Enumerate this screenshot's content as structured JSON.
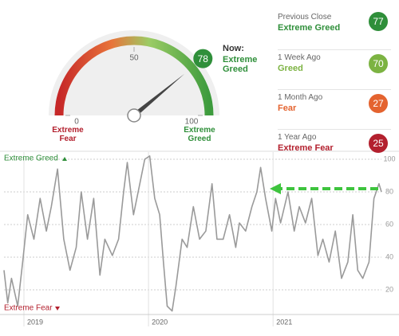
{
  "gauge": {
    "value": 78,
    "lim": [
      0,
      100
    ],
    "ticks": [
      0,
      50,
      100
    ],
    "fear_label": "Extreme Fear",
    "greed_label": "Extreme Greed",
    "now_label": "Now:",
    "now_rating": "Extreme Greed",
    "color": "#2f8f3a"
  },
  "history": [
    {
      "period": "Previous Close",
      "rating": "Extreme Greed",
      "value": 77,
      "color": "#2f8f3a"
    },
    {
      "period": "1 Week Ago",
      "rating": "Greed",
      "value": 70,
      "color": "#7cb342"
    },
    {
      "period": "1 Month Ago",
      "rating": "Fear",
      "value": 27,
      "color": "#e4632f"
    },
    {
      "period": "1 Year Ago",
      "rating": "Extreme Fear",
      "value": 25,
      "color": "#b3202e"
    }
  ],
  "chart_data": {
    "type": "line",
    "top_label": "Extreme Greed",
    "bottom_label": "Extreme Fear",
    "x": [
      2018.84,
      2018.87,
      2018.9,
      2018.95,
      2018.99,
      2019.03,
      2019.08,
      2019.13,
      2019.18,
      2019.22,
      2019.27,
      2019.32,
      2019.37,
      2019.42,
      2019.46,
      2019.51,
      2019.56,
      2019.61,
      2019.65,
      2019.71,
      2019.76,
      2019.8,
      2019.83,
      2019.88,
      2019.93,
      2019.97,
      2020.01,
      2020.05,
      2020.09,
      2020.12,
      2020.15,
      2020.19,
      2020.22,
      2020.27,
      2020.31,
      2020.36,
      2020.41,
      2020.46,
      2020.51,
      2020.55,
      2020.6,
      2020.65,
      2020.7,
      2020.73,
      2020.78,
      2020.83,
      2020.87,
      2020.9,
      2020.94,
      2020.99,
      2021.02,
      2021.06,
      2021.12,
      2021.17,
      2021.21,
      2021.26,
      2021.31,
      2021.36,
      2021.4,
      2021.45,
      2021.5,
      2021.55,
      2021.6,
      2021.64,
      2021.68,
      2021.72,
      2021.77,
      2021.81,
      2021.85,
      2021.87
    ],
    "values": [
      32,
      12,
      27,
      10,
      37,
      66,
      51,
      76,
      56,
      71,
      94,
      51,
      32,
      46,
      80,
      51,
      76,
      29,
      51,
      41,
      51,
      80,
      98,
      66,
      85,
      100,
      102,
      76,
      66,
      37,
      10,
      7,
      22,
      51,
      46,
      71,
      51,
      56,
      85,
      51,
      51,
      66,
      46,
      61,
      56,
      71,
      80,
      95,
      76,
      56,
      76,
      61,
      80,
      56,
      71,
      61,
      76,
      41,
      51,
      37,
      56,
      27,
      37,
      66,
      32,
      27,
      37,
      76,
      85,
      80
    ],
    "color": "#9a9a9a",
    "xlim": [
      2018.84,
      2021.87
    ],
    "xticks": [
      2019,
      2020,
      2021
    ],
    "ylim": [
      5,
      104
    ],
    "yticks": [
      20,
      40,
      60,
      80,
      100
    ],
    "grid": true
  }
}
